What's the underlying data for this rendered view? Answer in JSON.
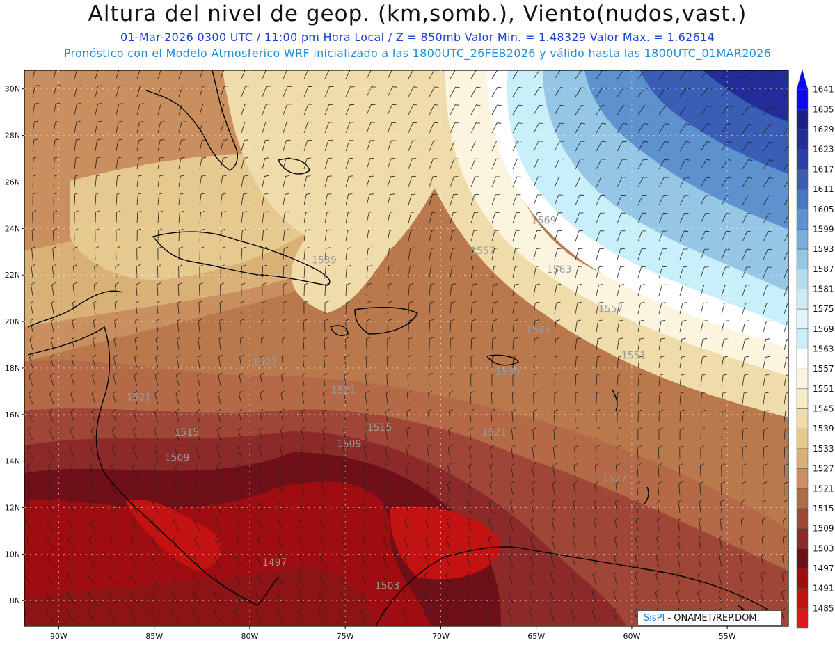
{
  "header": {
    "title": "Altura del nivel de geop. (km,somb.), Viento(nudos,vast.)",
    "subtitle_1": "01-Mar-2026  0300 UTC / 11:00 pm Hora Local / Z = 850mb    Valor Min. = 1.48329  Valor Max. = 1.62614",
    "subtitle_2": "Pronóstico con el Modelo Atmosferico WRF inicializado a las 1800UTC_26FEB2026 y válido hasta las  1800UTC_01MAR2026"
  },
  "map": {
    "lat_labels": [
      "30N",
      "28N",
      "26N",
      "24N",
      "22N",
      "20N",
      "18N",
      "16N",
      "14N",
      "12N",
      "10N",
      "8N"
    ],
    "lon_labels": [
      "90W",
      "85W",
      "80W",
      "75W",
      "70W",
      "65W",
      "60W",
      "55W"
    ],
    "contour_labels": [
      {
        "text": "1569",
        "lon": -64.6,
        "lat": 24.2
      },
      {
        "text": "1557",
        "lon": -67.8,
        "lat": 22.9
      },
      {
        "text": "1563",
        "lon": -63.8,
        "lat": 22.1
      },
      {
        "text": "1557",
        "lon": -61.1,
        "lat": 20.4
      },
      {
        "text": "1551",
        "lon": -59.9,
        "lat": 18.4
      },
      {
        "text": "1545",
        "lon": -64.9,
        "lat": 19.5
      },
      {
        "text": "1539",
        "lon": -76.1,
        "lat": 22.5
      },
      {
        "text": "1539",
        "lon": -66.5,
        "lat": 17.7
      },
      {
        "text": "1527",
        "lon": -79.2,
        "lat": 18.1
      },
      {
        "text": "1521",
        "lon": -75.1,
        "lat": 16.9
      },
      {
        "text": "1521",
        "lon": -85.8,
        "lat": 16.6
      },
      {
        "text": "1521",
        "lon": -67.2,
        "lat": 15.1
      },
      {
        "text": "1527",
        "lon": -60.9,
        "lat": 13.1
      },
      {
        "text": "1515",
        "lon": -73.2,
        "lat": 15.3
      },
      {
        "text": "1515",
        "lon": -83.3,
        "lat": 15.1
      },
      {
        "text": "1509",
        "lon": -74.8,
        "lat": 14.6
      },
      {
        "text": "1509",
        "lon": -83.8,
        "lat": 14.0
      },
      {
        "text": "1497",
        "lon": -78.7,
        "lat": 9.5
      },
      {
        "text": "1503",
        "lon": -72.8,
        "lat": 8.5
      }
    ]
  },
  "colorbar": {
    "labels": [
      "1641",
      "1635",
      "1629",
      "1623",
      "1617",
      "1611",
      "1605",
      "1599",
      "1593",
      "1587",
      "1581",
      "1575",
      "1569",
      "1563",
      "1557",
      "1551",
      "1545",
      "1539",
      "1533",
      "1527",
      "1521",
      "1515",
      "1509",
      "1503",
      "1497",
      "1491",
      "1485"
    ],
    "colors": [
      "#0b0bf2",
      "#1b1f8c",
      "#222d99",
      "#2b3fa8",
      "#3a5db6",
      "#4a77c2",
      "#5d92cf",
      "#78aedc",
      "#95c6e6",
      "#b3dcef",
      "#cdeaf5",
      "#e3f4fa",
      "#c9f0fa",
      "#ffffff",
      "#fbf5df",
      "#f7ecc6",
      "#efdcaa",
      "#e6c98e",
      "#d9b177",
      "#c98f5e",
      "#b46a47",
      "#a04636",
      "#8c2a2a",
      "#6f0f18",
      "#a00d10",
      "#c21212",
      "#e01818"
    ],
    "top_color": "#0b0bf2",
    "bottom_color": "#ff1a1a"
  },
  "credit": {
    "logo": "SisPI",
    "text": " - ONAMET/REP.DOM."
  }
}
